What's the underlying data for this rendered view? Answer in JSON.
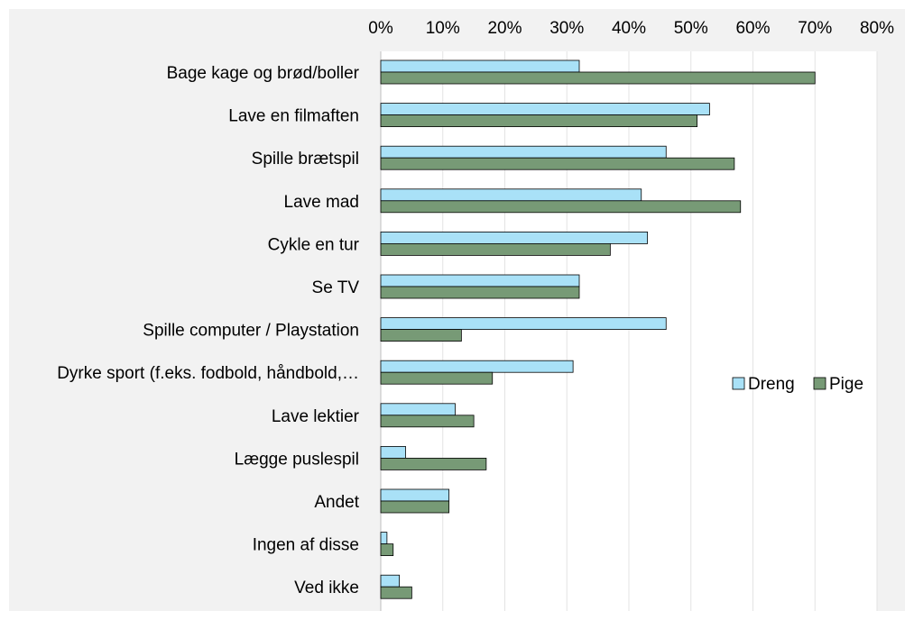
{
  "chart_data": {
    "type": "bar",
    "orientation": "horizontal",
    "title": "",
    "xlabel": "",
    "ylabel": "",
    "xlim": [
      0,
      80
    ],
    "x_tick_values": [
      0,
      10,
      20,
      30,
      40,
      50,
      60,
      70,
      80
    ],
    "x_tick_labels": [
      "0%",
      "10%",
      "20%",
      "30%",
      "40%",
      "50%",
      "60%",
      "70%",
      "80%"
    ],
    "x_axis_position": "top",
    "grid": true,
    "legend_position": "right",
    "categories": [
      "Bage kage og brød/boller",
      "Lave en filmaften",
      "Spille brætspil",
      "Lave mad",
      "Cykle en tur",
      "Se TV",
      "Spille computer / Playstation",
      "Dyrke sport (f.eks. fodbold, håndbold,…",
      "Lave lektier",
      "Lægge puslespil",
      "Andet",
      "Ingen af disse",
      "Ved ikke"
    ],
    "series": [
      {
        "name": "Dreng",
        "color": "#a9e1f7",
        "values": [
          32,
          53,
          46,
          42,
          43,
          32,
          46,
          31,
          12,
          4,
          11,
          1,
          3
        ]
      },
      {
        "name": "Pige",
        "color": "#779a76",
        "values": [
          70,
          51,
          57,
          58,
          37,
          32,
          13,
          18,
          15,
          17,
          11,
          2,
          5
        ]
      }
    ]
  }
}
